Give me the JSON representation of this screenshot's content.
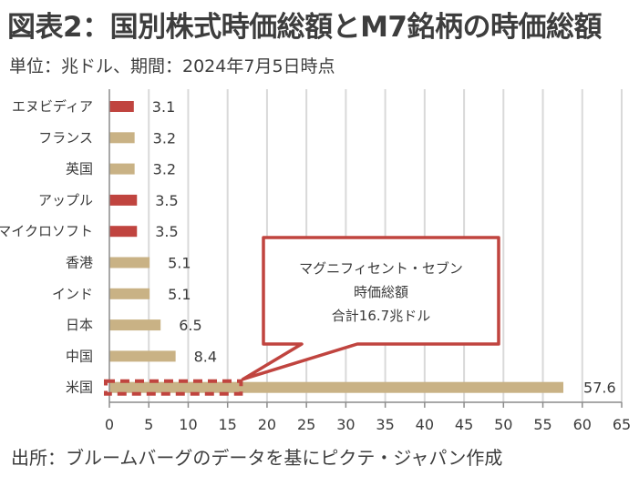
{
  "header": {
    "title": "図表2：国別株式時価総額とM7銘柄の時価総額",
    "subtitle": "単位：兆ドル、期間：2024年7月5日時点"
  },
  "footer": {
    "source": "出所：ブルームバーグのデータを基にピクテ・ジャパン作成"
  },
  "colors": {
    "m7_bar": "#c0443f",
    "country_bar": "#c9b285",
    "callout_border": "#c0443f",
    "grid": "#d9d9d9",
    "axis": "#8c8c8c"
  },
  "chart_data": {
    "type": "bar",
    "orientation": "horizontal",
    "title": "国別株式時価総額とM7銘柄の時価総額",
    "xlabel": "",
    "ylabel": "",
    "unit": "兆ドル",
    "xlim": [
      0,
      65
    ],
    "x_ticks": [
      0,
      5,
      10,
      15,
      20,
      25,
      30,
      35,
      40,
      45,
      50,
      55,
      60,
      65
    ],
    "grid": true,
    "categories": [
      "エヌビディア",
      "フランス",
      "英国",
      "アップル",
      "マイクロソフト",
      "香港",
      "インド",
      "日本",
      "中国",
      "米国"
    ],
    "values": [
      3.1,
      3.2,
      3.2,
      3.5,
      3.5,
      5.1,
      5.1,
      6.5,
      8.4,
      57.6
    ],
    "value_labels": [
      "3.1",
      "3.2",
      "3.2",
      "3.5",
      "3.5",
      "5.1",
      "5.1",
      "6.5",
      "8.4",
      "57.6"
    ],
    "groups": [
      "m7",
      "country",
      "country",
      "m7",
      "m7",
      "country",
      "country",
      "country",
      "country",
      "country"
    ],
    "annotation": {
      "lines": [
        "マグニフィセント・セブン",
        "時価総額",
        "合計16.7兆ドル"
      ],
      "highlight_value": 16.7,
      "highlight_category": "米国"
    }
  }
}
